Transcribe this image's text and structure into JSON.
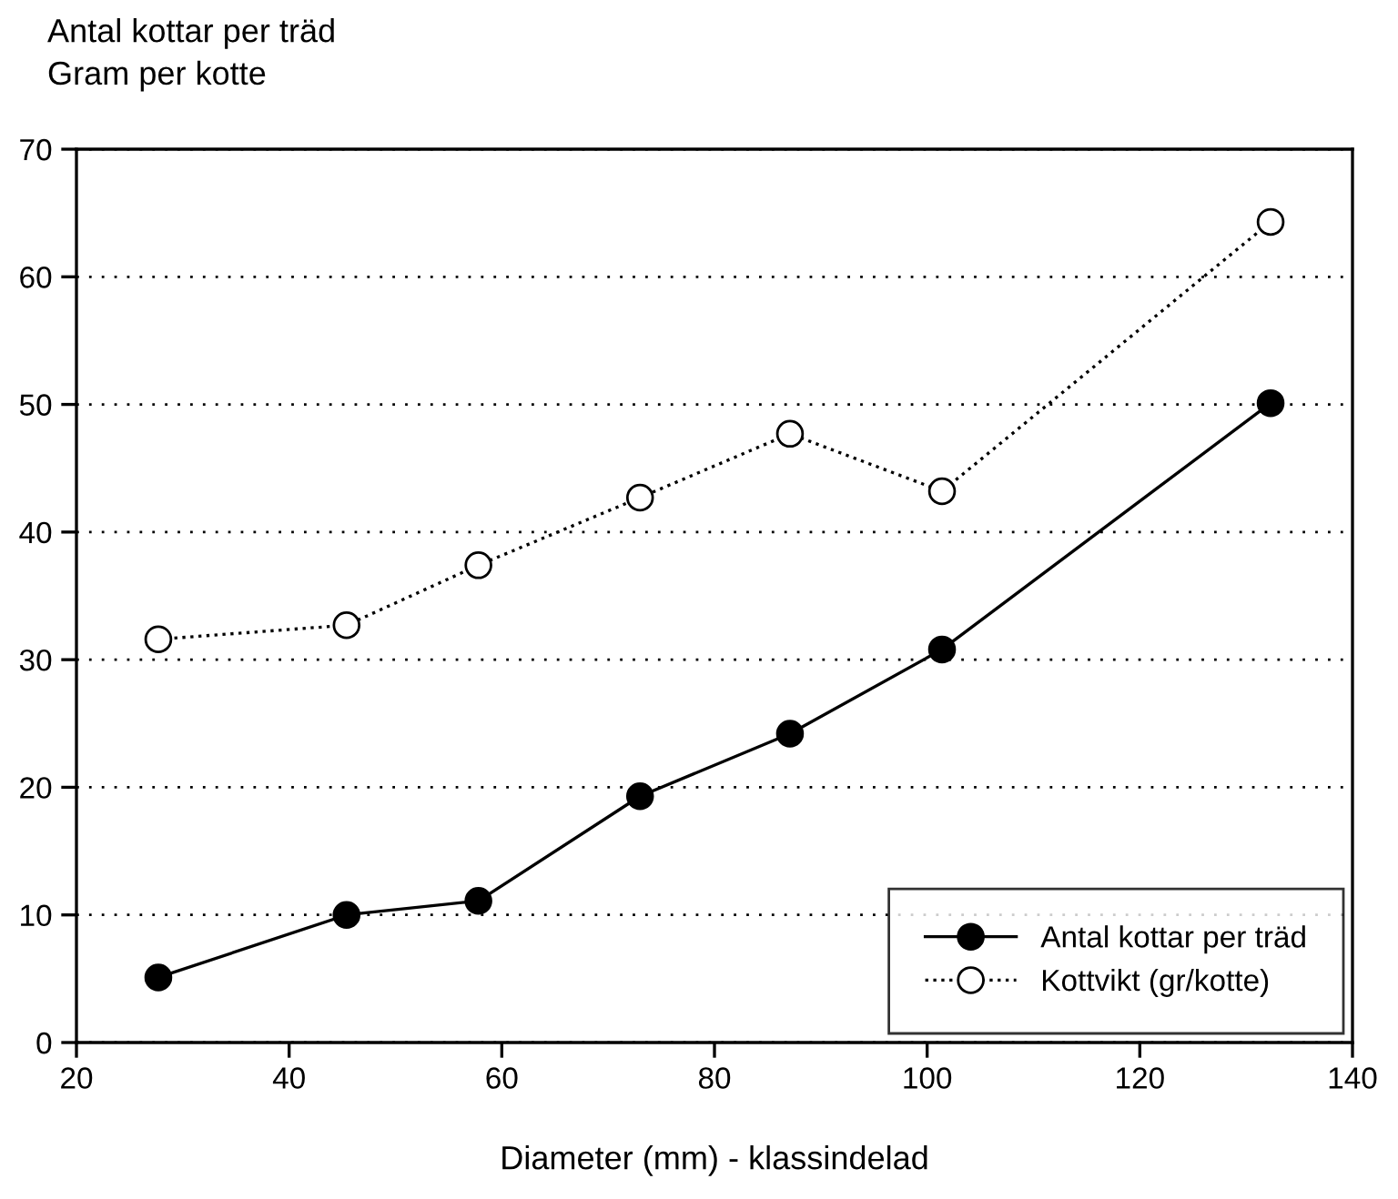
{
  "chart_data": {
    "type": "line",
    "ylabel": "Antal kottar per träd\nGram per kotte",
    "xlabel": "Diameter (mm) - klassindelad",
    "x": [
      27.7,
      45.4,
      57.8,
      73.0,
      87.1,
      101.4,
      132.3
    ],
    "series": [
      {
        "name": "Antal kottar per träd",
        "color": "#000000",
        "marker": "circle",
        "line_style": "solid",
        "values": [
          5.1,
          10.0,
          11.1,
          19.3,
          24.2,
          30.8,
          50.1
        ]
      },
      {
        "name": "Kottvikt (gr/kotte)",
        "color": "#000000",
        "marker": "circle",
        "line_style": "dotted",
        "values": [
          31.6,
          32.7,
          37.4,
          42.7,
          47.7,
          43.2,
          64.3
        ]
      }
    ],
    "xlim": [
      20,
      140
    ],
    "xticks": [
      20,
      40,
      60,
      80,
      100,
      120,
      140
    ],
    "ylim": [
      0,
      70
    ],
    "yticks": [
      0,
      10,
      20,
      30,
      40,
      50,
      60,
      70
    ],
    "grid": "y",
    "legend": "bottom right"
  }
}
